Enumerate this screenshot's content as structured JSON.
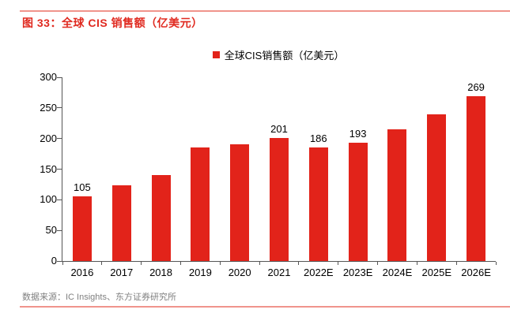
{
  "figure": {
    "title": "图 33：全球 CIS 销售额（亿美元）",
    "source": "数据来源：IC Insights、东方证券研究所"
  },
  "legend": {
    "marker": "red-square",
    "label": "全球CIS销售额（亿美元）"
  },
  "colors": {
    "bar": "#e2231a",
    "title": "#e02a20",
    "accent_line": "#f0948c",
    "source_text": "#808080",
    "axis": "#555555"
  },
  "chart_data": {
    "type": "bar",
    "title": "全球CIS销售额（亿美元）",
    "categories": [
      "2016",
      "2017",
      "2018",
      "2019",
      "2020",
      "2021",
      "2022E",
      "2023E",
      "2024E",
      "2025E",
      "2026E"
    ],
    "values": [
      105,
      123,
      140,
      185,
      190,
      201,
      186,
      193,
      215,
      239,
      269
    ],
    "data_labels_shown_indices": [
      0,
      5,
      6,
      7,
      10
    ],
    "xlabel": "",
    "ylabel": "",
    "ylim": [
      0,
      300
    ],
    "yticks": [
      0,
      50,
      100,
      150,
      200,
      250,
      300
    ],
    "grid": "off",
    "legend_position": "top-center"
  }
}
